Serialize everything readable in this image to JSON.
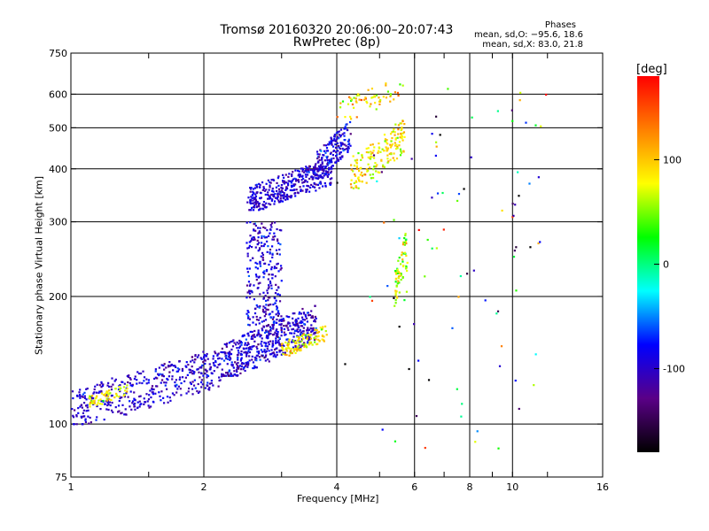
{
  "title": "Tromsø 20160320 20:06:00–20:07:43",
  "subtitle": "RwPretec (8p)",
  "phase_stats": {
    "heading": "Phases",
    "o_mode": "mean, sd,O: −95.6, 18.6",
    "x_mode": "mean, sd,X:  83.0, 21.8"
  },
  "colorbar": {
    "unit": "[deg]",
    "range": [
      -180,
      180
    ],
    "ticks": [
      100,
      0,
      -100
    ],
    "colors": [
      "#000000",
      "#5a0087",
      "#0000ff",
      "#00ffff",
      "#00ff00",
      "#ffff00",
      "#ff8000",
      "#ff0000"
    ]
  },
  "chart_data": {
    "type": "scatter",
    "title": "Tromsø 20160320 20:06:00–20:07:43",
    "subtitle": "RwPretec (8p)",
    "xlabel": "Frequency [MHz]",
    "ylabel": "Stationary phase Virtual Height [km]",
    "xscale": "log",
    "yscale": "log",
    "xlim": [
      1,
      16
    ],
    "ylim": [
      75,
      750
    ],
    "x_ticks": [
      1,
      2,
      4,
      6,
      8,
      10,
      16
    ],
    "x_minor_ticks": [
      1.5,
      3,
      5,
      7,
      9,
      12
    ],
    "y_ticks": [
      75,
      100,
      200,
      300,
      400,
      500,
      600,
      750
    ],
    "y_grid": [
      100,
      200,
      300,
      400,
      500,
      600
    ],
    "x_grid": [
      2,
      4,
      6,
      8,
      10
    ],
    "grid": true,
    "point_groups": [
      {
        "trace": "low E/F1 trace (O-mode)",
        "x_range": [
          1.0,
          2.2
        ],
        "y_range": [
          100,
          150
        ],
        "count": 420,
        "phase_mean": -100,
        "phase_sd": 15
      },
      {
        "trace": "F1 trace (O-mode)",
        "x_range": [
          2.2,
          3.6
        ],
        "y_range": [
          130,
          190
        ],
        "count": 500,
        "phase_mean": -98,
        "phase_sd": 18
      },
      {
        "trace": "F1 cusp (O-mode)",
        "x_range": [
          2.5,
          3.0
        ],
        "y_range": [
          170,
          300
        ],
        "count": 260,
        "phase_mean": -95,
        "phase_sd": 20
      },
      {
        "trace": "F2 trace (O-mode)",
        "x_range": [
          2.5,
          3.9
        ],
        "y_range": [
          320,
          420
        ],
        "count": 380,
        "phase_mean": -97,
        "phase_sd": 15
      },
      {
        "trace": "F2 rise (O-mode)",
        "x_range": [
          3.6,
          4.3
        ],
        "y_range": [
          380,
          520
        ],
        "count": 160,
        "phase_mean": -90,
        "phase_sd": 20
      },
      {
        "trace": "low cluster (X-mode)",
        "x_range": [
          1.1,
          1.35
        ],
        "y_range": [
          110,
          125
        ],
        "count": 60,
        "phase_mean": 80,
        "phase_sd": 20
      },
      {
        "trace": "mid cluster (X-mode)",
        "x_range": [
          3.0,
          3.8
        ],
        "y_range": [
          145,
          170
        ],
        "count": 110,
        "phase_mean": 85,
        "phase_sd": 20
      },
      {
        "trace": "F2 X-mode",
        "x_range": [
          4.3,
          5.7
        ],
        "y_range": [
          360,
          520
        ],
        "count": 170,
        "phase_mean": 85,
        "phase_sd": 20
      },
      {
        "trace": "high X-mode",
        "x_range": [
          4.0,
          5.7
        ],
        "y_range": [
          520,
          660
        ],
        "count": 60,
        "phase_mean": 95,
        "phase_sd": 30
      },
      {
        "trace": "mid X-mode",
        "x_range": [
          5.4,
          5.8
        ],
        "y_range": [
          190,
          290
        ],
        "count": 70,
        "phase_mean": 60,
        "phase_sd": 30
      },
      {
        "trace": "scatter",
        "x_range": [
          4.0,
          12.0
        ],
        "y_range": [
          85,
          620
        ],
        "count": 90,
        "phase_mean": -40,
        "phase_sd": 110
      }
    ]
  }
}
